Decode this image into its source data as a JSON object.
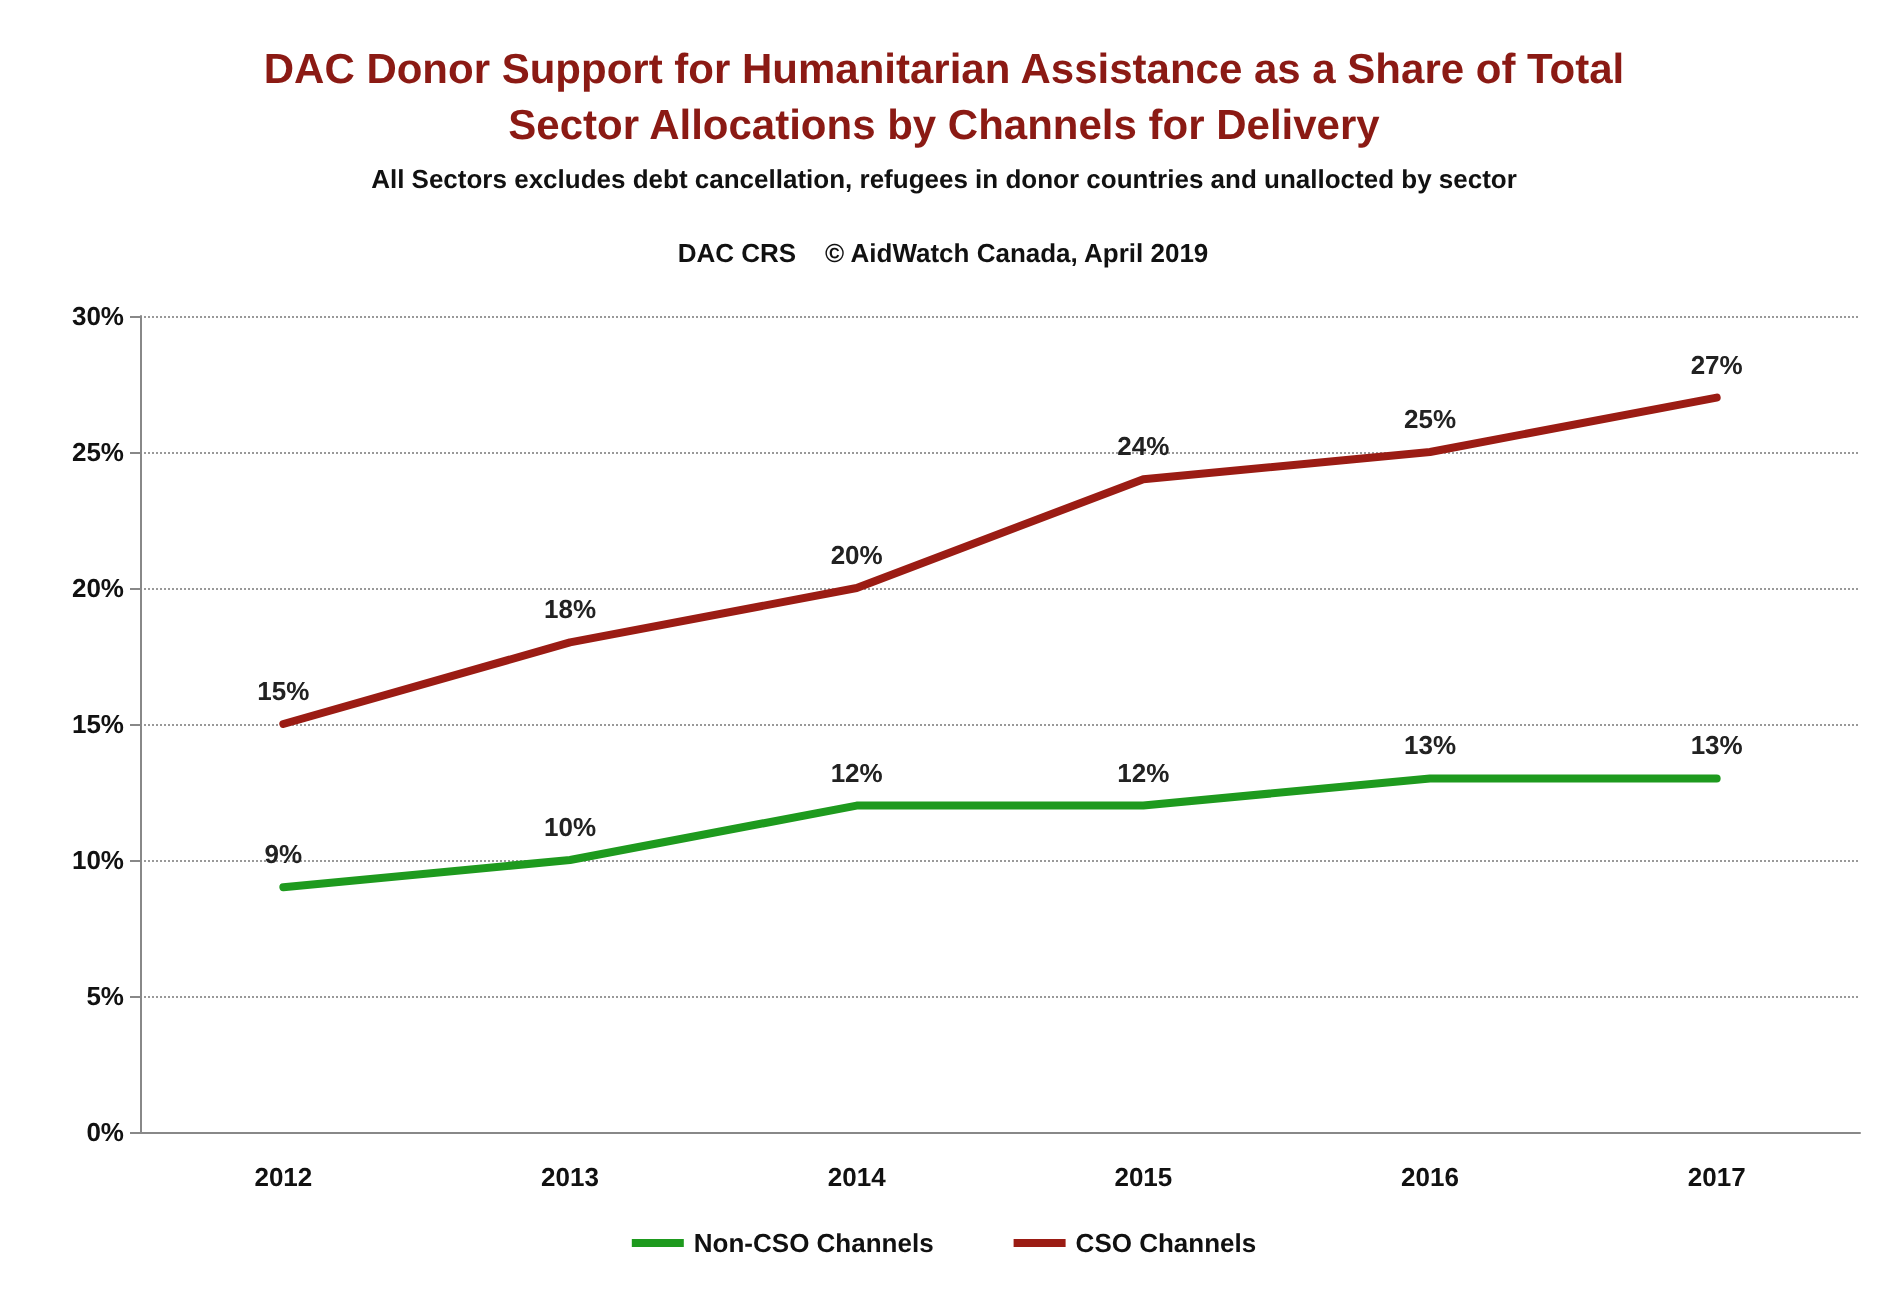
{
  "chart_data": {
    "type": "line",
    "title": "DAC Donor Support for Humanitarian Assistance as a Share of Total\nSector Allocations by Channels for Delivery",
    "subtitle": "All Sectors excludes debt cancellation, refugees in donor countries and unallocted by sector",
    "annotations": [
      "DAC CRS    © AidWatch Canada, April 2019"
    ],
    "categories": [
      "2012",
      "2013",
      "2014",
      "2015",
      "2016",
      "2017"
    ],
    "series": [
      {
        "name": "Non-CSO Channels",
        "color": "#1e9a1e",
        "values": [
          9,
          10,
          12,
          12,
          13,
          13
        ],
        "value_labels": [
          "9%",
          "10%",
          "12%",
          "12%",
          "13%",
          "13%"
        ]
      },
      {
        "name": "CSO Channels",
        "color": "#9b1c14",
        "values": [
          15,
          18,
          20,
          24,
          25,
          27
        ],
        "value_labels": [
          "15%",
          "18%",
          "20%",
          "24%",
          "25%",
          "27%"
        ]
      }
    ],
    "ylim": [
      0,
      30
    ],
    "yticks": [
      {
        "value": 0,
        "label": "0%"
      },
      {
        "value": 5,
        "label": "5%"
      },
      {
        "value": 10,
        "label": "10%"
      },
      {
        "value": 15,
        "label": "15%"
      },
      {
        "value": 20,
        "label": "20%"
      },
      {
        "value": 25,
        "label": "25%"
      },
      {
        "value": 30,
        "label": "30%"
      }
    ],
    "grid": "y",
    "legend": "bottom",
    "marker": "none",
    "line_style": "solid"
  }
}
